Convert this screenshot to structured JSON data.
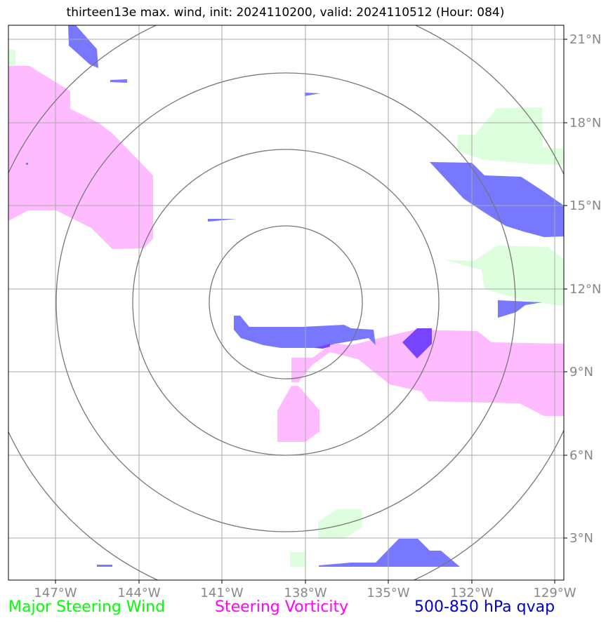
{
  "title": "thirteen13e max. wind, init: 2024110200, valid: 2024110512 (Hour: 084)",
  "lon_labels": [
    "147°W",
    "144°W",
    "141°W",
    "138°W",
    "135°W",
    "132°W",
    "129°W"
  ],
  "lat_labels": [
    "21°N",
    "18°N",
    "15°N",
    "12°N",
    "9°N",
    "6°N",
    "3°N"
  ],
  "legend": [
    {
      "label": "Major Steering Wind",
      "color": "#00ff00"
    },
    {
      "label": "Steering Vorticity",
      "color": "#ff00ff"
    },
    {
      "label": "500-850 hPa qvap",
      "color": "#0000cc"
    }
  ],
  "colors": {
    "wind_fill": "#ddffdd",
    "vorticity_fill": "#ffbbff",
    "qvap_fill": "#7777ff",
    "overlap_fill": "#7744ff",
    "grid": "#aaaaaa",
    "rings": "#777777",
    "axis_text": "#888888"
  },
  "chart_data": {
    "type": "map",
    "projection": "lat-lon grid",
    "lon_range": [
      -148.7,
      -128.8
    ],
    "lat_range": [
      1.7,
      21.7
    ],
    "grid": true,
    "storm_center": {
      "lon": -139.0,
      "lat": 11.5
    },
    "range_rings_deg": [
      2.75,
      5.5,
      8.25,
      11.0
    ],
    "fields": [
      "Major Steering Wind",
      "Steering Vorticity",
      "500-850 hPa qvap"
    ]
  }
}
